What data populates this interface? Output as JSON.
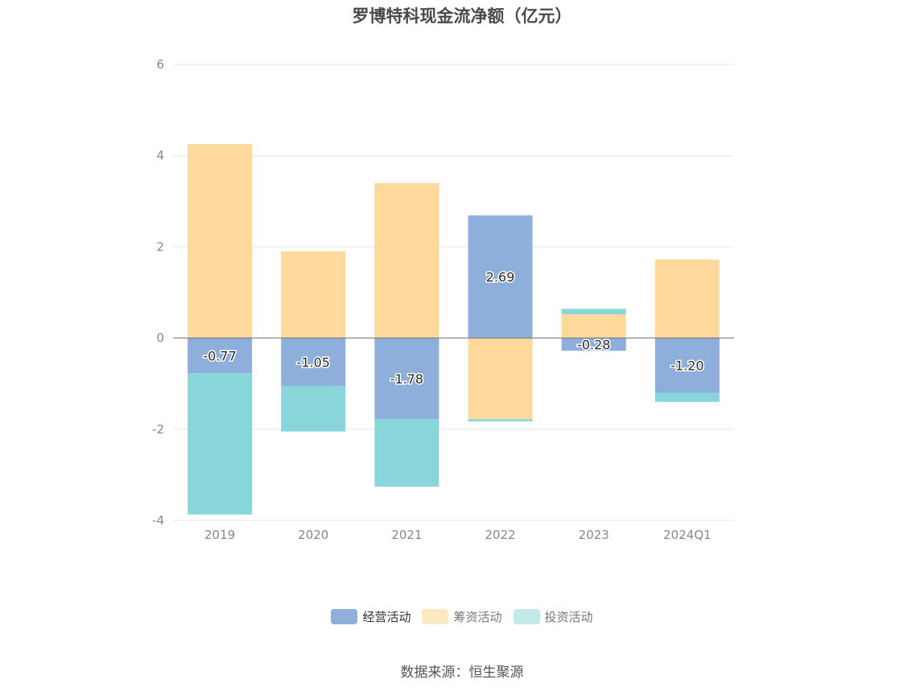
{
  "source_label": "数据来源：恒生聚源",
  "chart_data": {
    "type": "bar",
    "stacked": true,
    "title": "罗博特科现金流净额（亿元）",
    "xlabel": "",
    "ylabel": "",
    "categories": [
      "2019",
      "2020",
      "2021",
      "2022",
      "2023",
      "2024Q1"
    ],
    "ylim": [
      -4,
      6
    ],
    "yticks": [
      -4,
      -2,
      0,
      2,
      4,
      6
    ],
    "grid": true,
    "legend_position": "bottom",
    "series": [
      {
        "name": "经营活动",
        "color": "#8eaedb",
        "values": [
          -0.77,
          -1.05,
          -1.78,
          2.69,
          -0.28,
          -1.2
        ],
        "data_labels": [
          "-0.77",
          "-1.05",
          "-1.78",
          "2.69",
          "-0.28",
          "-1.20"
        ]
      },
      {
        "name": "筹资活动",
        "color": "#ffd99b",
        "legend_color": "#ffe8c4",
        "values": [
          4.25,
          1.9,
          3.4,
          -1.78,
          0.52,
          1.72
        ]
      },
      {
        "name": "投资活动",
        "color": "#88d6da",
        "legend_color": "#c2e9ea",
        "values": [
          -3.1,
          -1.0,
          -1.48,
          -0.05,
          0.12,
          -0.2
        ]
      }
    ]
  }
}
